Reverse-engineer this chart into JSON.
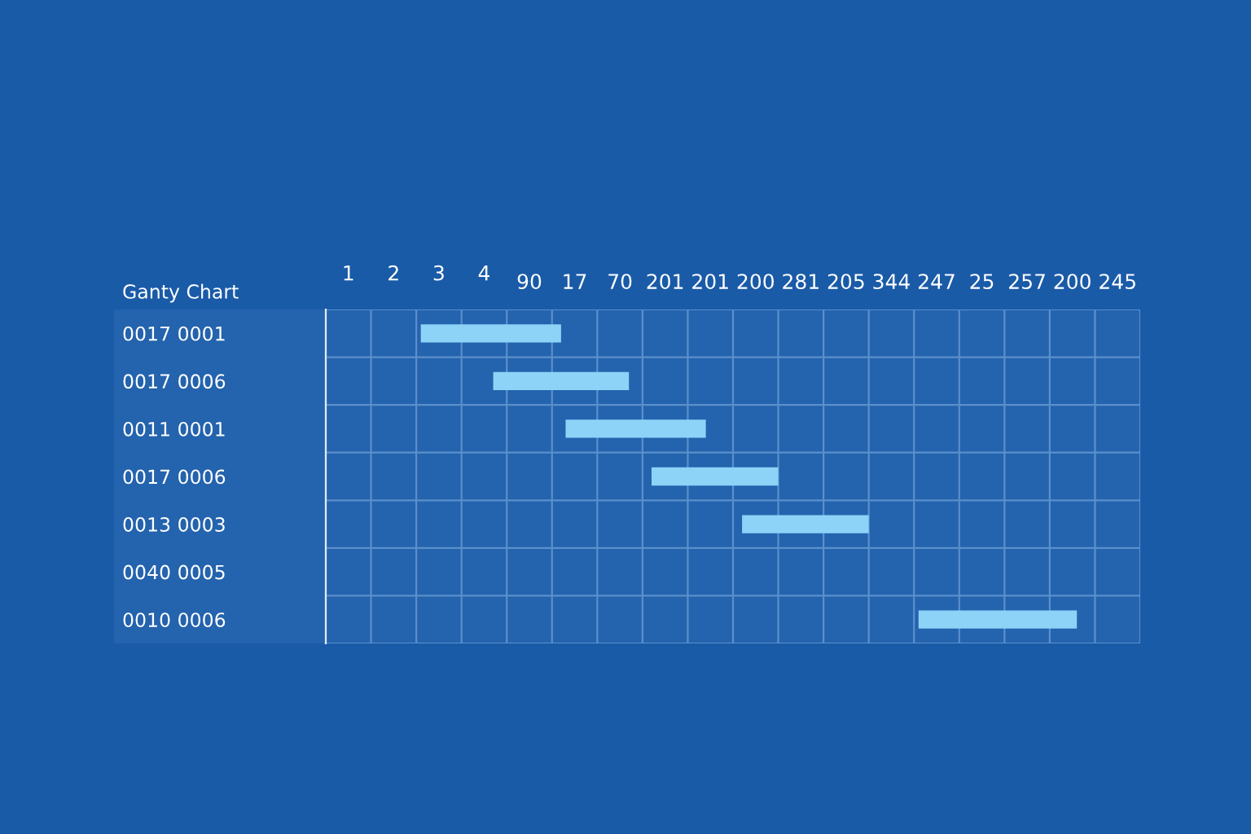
{
  "chart_data": {
    "type": "bar",
    "orientation": "horizontal",
    "title": "Ganty Chart",
    "categories": [
      "0017 0001",
      "0017 0006",
      "0011 0001",
      "0017 0006",
      "0013 0003",
      "0040 0005",
      "0010 0006"
    ],
    "base": [
      2.6,
      4.2,
      5.8,
      7.7,
      9.7,
      null,
      13.6
    ],
    "values": [
      3.1,
      3.0,
      3.1,
      2.8,
      2.8,
      null,
      3.5
    ],
    "color": "#8dd3f8",
    "xlim": [
      0.5,
      18.5
    ],
    "xticks": [
      1,
      2,
      3,
      4
    ],
    "annotations": [
      "90",
      "17",
      "70",
      "201",
      "201",
      "200",
      "281",
      "205",
      "344",
      "247",
      "25",
      "257",
      "200",
      "245"
    ],
    "grid": true
  }
}
